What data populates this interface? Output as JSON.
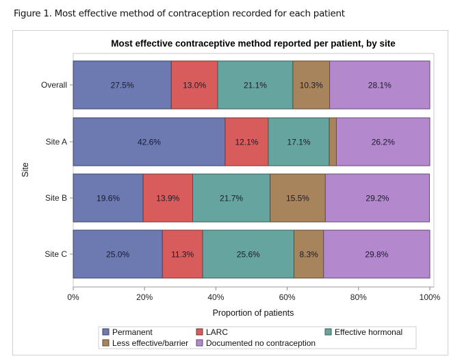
{
  "figure_caption": "Figure 1. Most effective method of contraception recorded for each patient",
  "chart_data": {
    "type": "bar",
    "orientation": "horizontal",
    "stacked": true,
    "title": "Most effective contraceptive method reported per patient, by site",
    "xlabel": "Proportion of patients",
    "ylabel": "Site",
    "xlim": [
      0,
      100
    ],
    "x_ticks": [
      "0%",
      "20%",
      "40%",
      "60%",
      "80%",
      "100%"
    ],
    "x_tick_values": [
      0,
      20,
      40,
      60,
      80,
      100
    ],
    "categories": [
      "Overall",
      "Site A",
      "Site B",
      "Site C"
    ],
    "series": [
      {
        "name": "Permanent",
        "color": "#6d7ab2",
        "values": [
          27.5,
          42.6,
          19.6,
          25.0
        ],
        "labels": [
          "27.5%",
          "42.6%",
          "19.6%",
          "25.0%"
        ]
      },
      {
        "name": "LARC",
        "color": "#d85c5c",
        "values": [
          13.0,
          12.1,
          13.9,
          11.3
        ],
        "labels": [
          "13.0%",
          "12.1%",
          "13.9%",
          "11.3%"
        ]
      },
      {
        "name": "Effective hormonal",
        "color": "#66a59f",
        "values": [
          21.1,
          17.1,
          21.7,
          25.6
        ],
        "labels": [
          "21.1%",
          "17.1%",
          "21.7%",
          "25.6%"
        ]
      },
      {
        "name": "Less effective/barrier",
        "color": "#a8845c",
        "values": [
          10.3,
          2.0,
          15.5,
          8.3
        ],
        "labels": [
          "10.3%",
          "",
          "15.5%",
          "8.3%"
        ]
      },
      {
        "name": "Documented no contraception",
        "color": "#b388cc",
        "values": [
          28.1,
          26.2,
          29.2,
          29.8
        ],
        "labels": [
          "28.1%",
          "26.2%",
          "29.2%",
          "29.8%"
        ]
      }
    ],
    "legend": {
      "placement": "bottom",
      "entries": [
        "Permanent",
        "LARC",
        "Effective hormonal",
        "Less effective/barrier",
        "Documented no contraception"
      ]
    },
    "grid": false
  }
}
